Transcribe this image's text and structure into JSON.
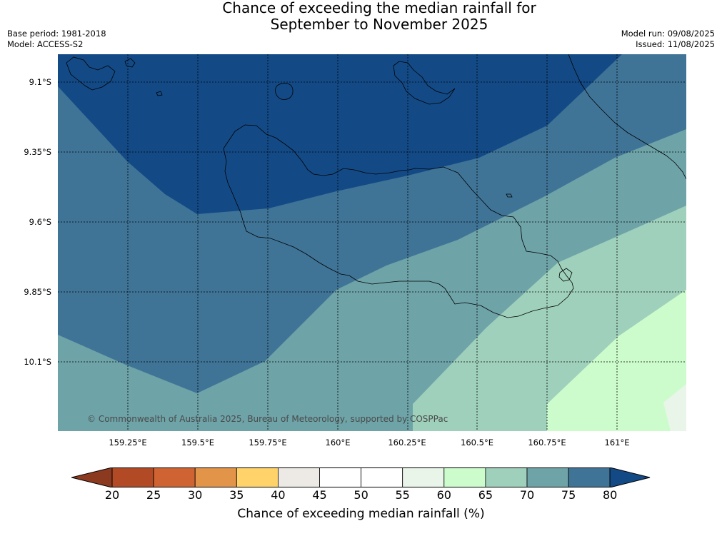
{
  "title": {
    "line1": "Chance of exceeding the median rainfall for",
    "line2": "September to November 2025"
  },
  "meta_left": {
    "base_period": "Base period: 1981-2018",
    "model": "Model: ACCESS-S2"
  },
  "meta_right": {
    "model_run": "Model run: 09/08/2025",
    "issued": "Issued: 11/08/2025"
  },
  "map": {
    "region": "Guadalcanal, Solomon Islands",
    "lat_ticks": [
      "9.1°S",
      "9.35°S",
      "9.6°S",
      "9.85°S",
      "10.1°S"
    ],
    "lon_ticks": [
      "159.25°E",
      "159.5°E",
      "159.75°E",
      "160°E",
      "160.25°E",
      "160.5°E",
      "160.75°E",
      "161°E"
    ],
    "copyright": "© Commonwealth of Australia 2025, Bureau of Meteorology, supported by COSPPac",
    "gridlines": true,
    "bands": [
      {
        "range": ">80",
        "color": "#134a86"
      },
      {
        "range": "75-80",
        "color": "#3f7497"
      },
      {
        "range": "70-75",
        "color": "#6ea3a8"
      },
      {
        "range": "65-70",
        "color": "#9fd0bb"
      },
      {
        "range": "60-65",
        "color": "#ccfccc"
      },
      {
        "range": "55-60",
        "color": "#e9f5e9"
      }
    ]
  },
  "colorbar": {
    "label": "Chance of exceeding median rainfall (%)",
    "ticks": [
      "20",
      "25",
      "30",
      "35",
      "40",
      "45",
      "50",
      "55",
      "60",
      "65",
      "70",
      "75",
      "80"
    ],
    "low_extend_color": "#8b3a1f",
    "high_extend_color": "#134a86",
    "colors": [
      "#b24b25",
      "#cf6332",
      "#e29449",
      "#ffd36a",
      "#ede9e4",
      "#ffffff",
      "#ffffff",
      "#e9f5e9",
      "#ccfccc",
      "#9fd0bb",
      "#6ea3a8",
      "#3f7497"
    ]
  }
}
